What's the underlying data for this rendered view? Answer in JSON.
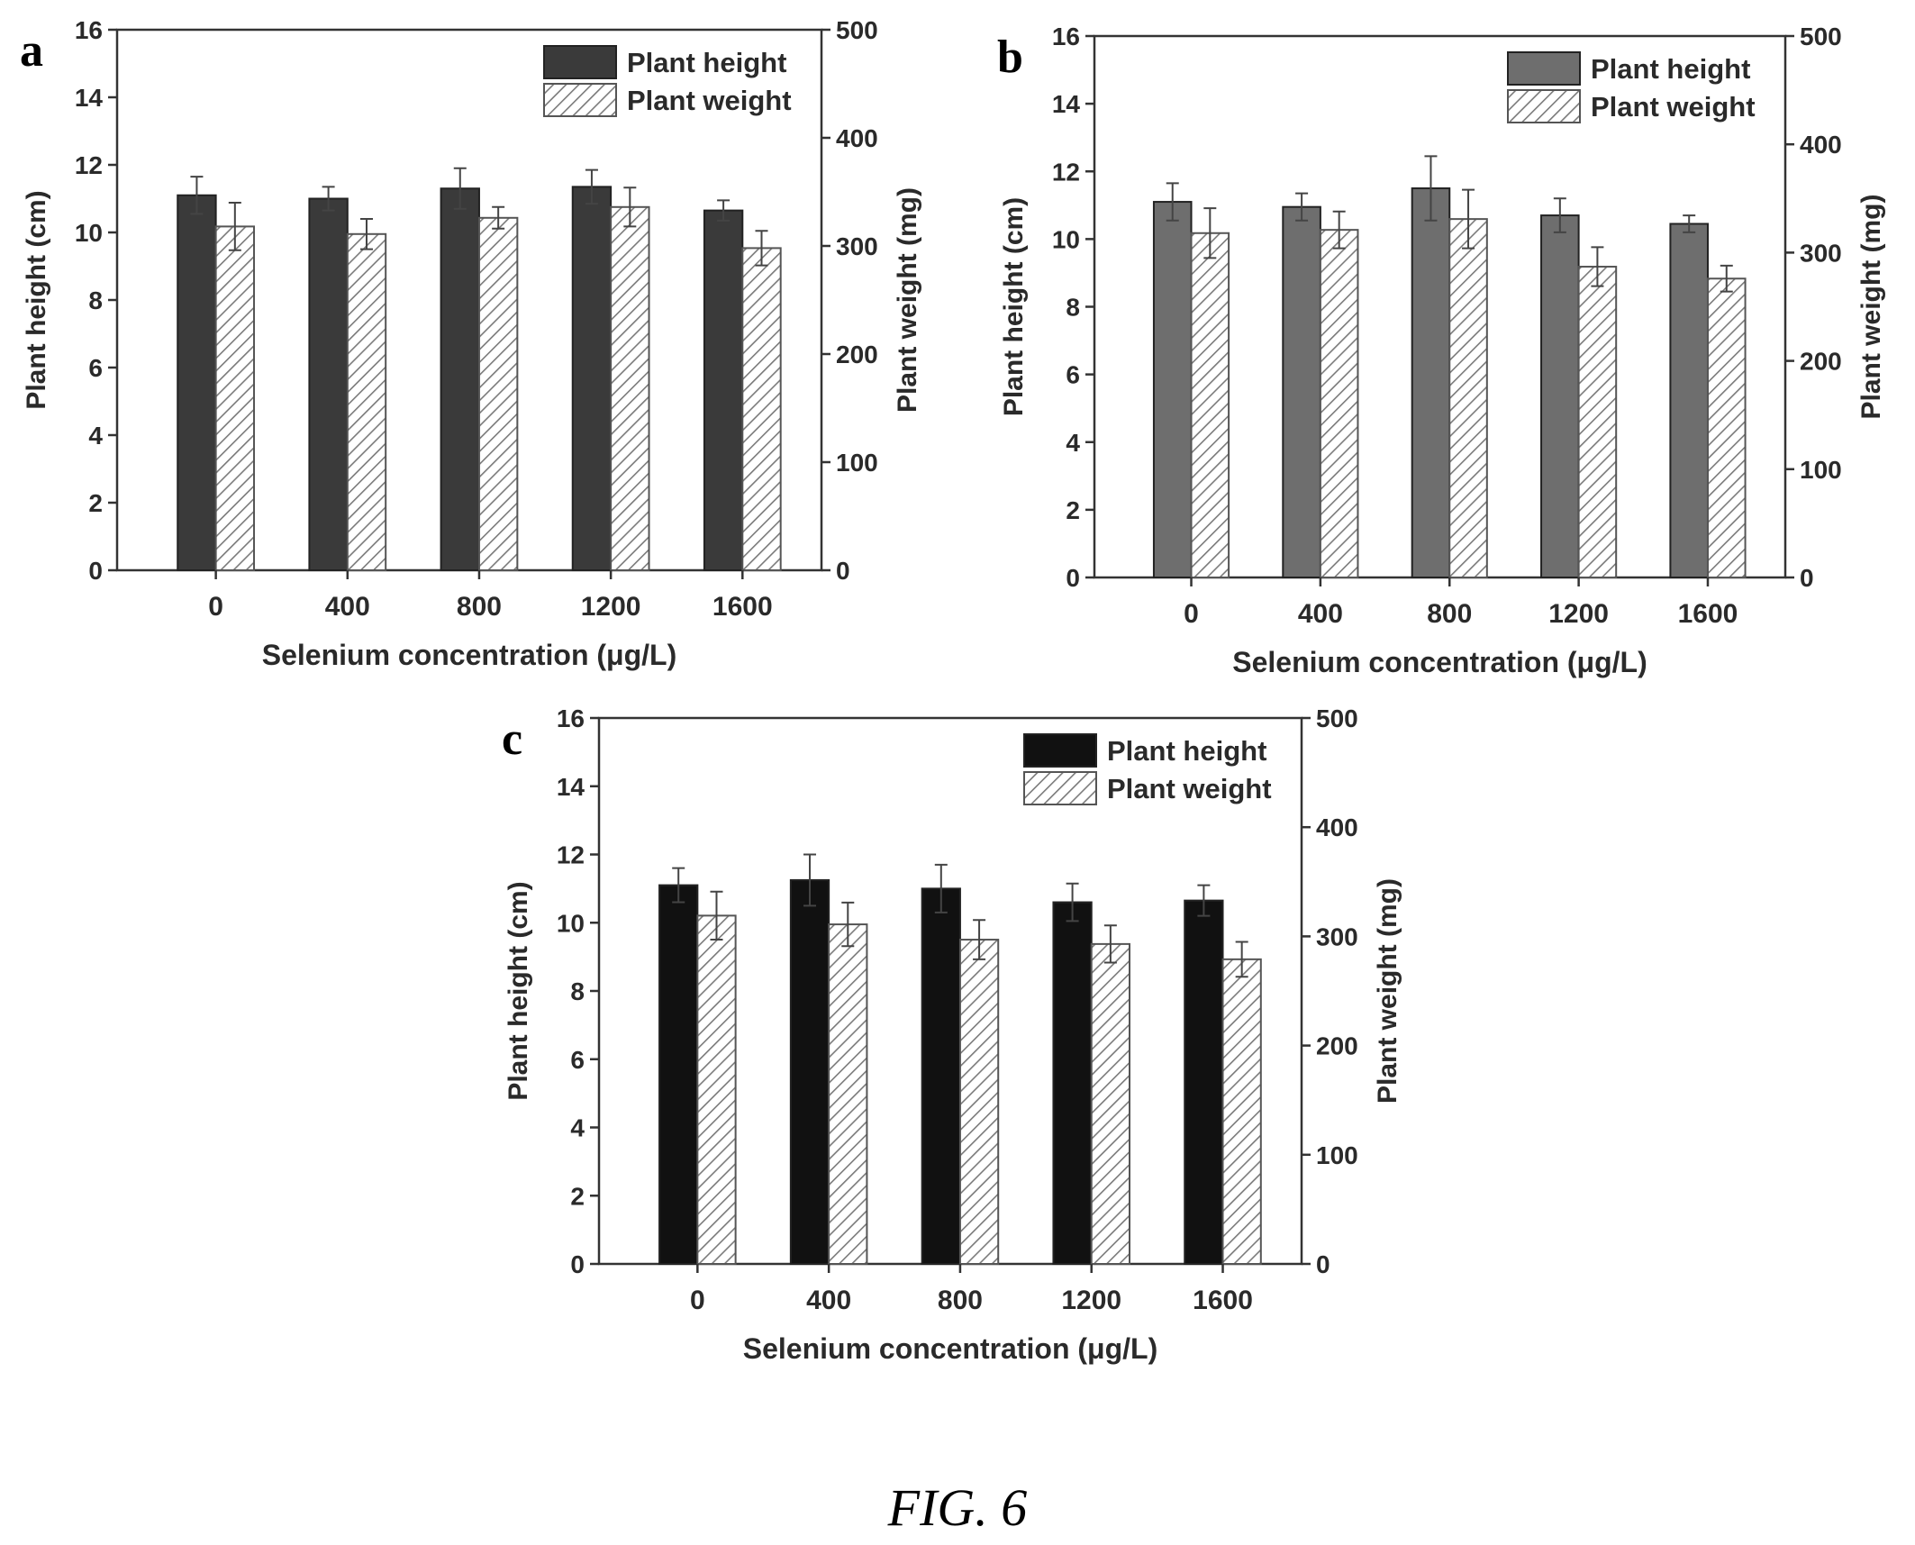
{
  "figure_caption": "FIG. 6",
  "colors": {
    "height_a": "#3a3a3a",
    "height_b": "#6e6e6e",
    "height_c": "#111111",
    "weight_hatch": "#7a7a7a",
    "axis": "#333333"
  },
  "chart_data": [
    {
      "panel": "a",
      "type": "bar",
      "title": "",
      "xlabel": "Selenium concentration (μg/L)",
      "ylabel": "Plant height (cm)",
      "y2label": "Plant weight (mg)",
      "categories": [
        "0",
        "400",
        "800",
        "1200",
        "1600"
      ],
      "ylim": [
        0,
        16
      ],
      "y2lim": [
        0,
        500
      ],
      "yticks": [
        "0",
        "2",
        "4",
        "6",
        "8",
        "10",
        "12",
        "14",
        "16"
      ],
      "y2ticks": [
        "0",
        "100",
        "200",
        "300",
        "400",
        "500"
      ],
      "legend_position": "top-right",
      "series": [
        {
          "name": "Plant height",
          "axis": "left",
          "values": [
            11.1,
            11.0,
            11.3,
            11.35,
            10.65
          ],
          "errors": [
            0.55,
            0.35,
            0.6,
            0.5,
            0.3
          ]
        },
        {
          "name": "Plant weight",
          "axis": "right",
          "values": [
            318,
            311,
            326,
            336,
            298
          ],
          "errors": [
            22,
            14,
            10,
            18,
            16
          ]
        }
      ]
    },
    {
      "panel": "b",
      "type": "bar",
      "title": "",
      "xlabel": "Selenium concentration (μg/L)",
      "ylabel": "Plant height (cm)",
      "y2label": "Plant weight (mg)",
      "categories": [
        "0",
        "400",
        "800",
        "1200",
        "1600"
      ],
      "ylim": [
        0,
        16
      ],
      "y2lim": [
        0,
        500
      ],
      "yticks": [
        "0",
        "2",
        "4",
        "6",
        "8",
        "10",
        "12",
        "14",
        "16"
      ],
      "y2ticks": [
        "0",
        "100",
        "200",
        "300",
        "400",
        "500"
      ],
      "legend_position": "top-right",
      "series": [
        {
          "name": "Plant height",
          "axis": "left",
          "values": [
            11.1,
            10.95,
            11.5,
            10.7,
            10.45
          ],
          "errors": [
            0.55,
            0.4,
            0.95,
            0.5,
            0.25
          ]
        },
        {
          "name": "Plant weight",
          "axis": "right",
          "values": [
            318,
            321,
            331,
            287,
            276
          ],
          "errors": [
            23,
            17,
            27,
            18,
            12
          ]
        }
      ]
    },
    {
      "panel": "c",
      "type": "bar",
      "title": "",
      "xlabel": "Selenium concentration (μg/L)",
      "ylabel": "Plant height (cm)",
      "y2label": "Plant weight (mg)",
      "categories": [
        "0",
        "400",
        "800",
        "1200",
        "1600"
      ],
      "ylim": [
        0,
        16
      ],
      "y2lim": [
        0,
        500
      ],
      "yticks": [
        "0",
        "2",
        "4",
        "6",
        "8",
        "10",
        "12",
        "14",
        "16"
      ],
      "y2ticks": [
        "0",
        "100",
        "200",
        "300",
        "400",
        "500"
      ],
      "legend_position": "top-right",
      "series": [
        {
          "name": "Plant height",
          "axis": "left",
          "values": [
            11.1,
            11.25,
            11.0,
            10.6,
            10.65
          ],
          "errors": [
            0.5,
            0.75,
            0.7,
            0.55,
            0.45
          ]
        },
        {
          "name": "Plant weight",
          "axis": "right",
          "values": [
            319,
            311,
            297,
            293,
            279
          ],
          "errors": [
            22,
            20,
            18,
            17,
            16
          ]
        }
      ]
    }
  ]
}
